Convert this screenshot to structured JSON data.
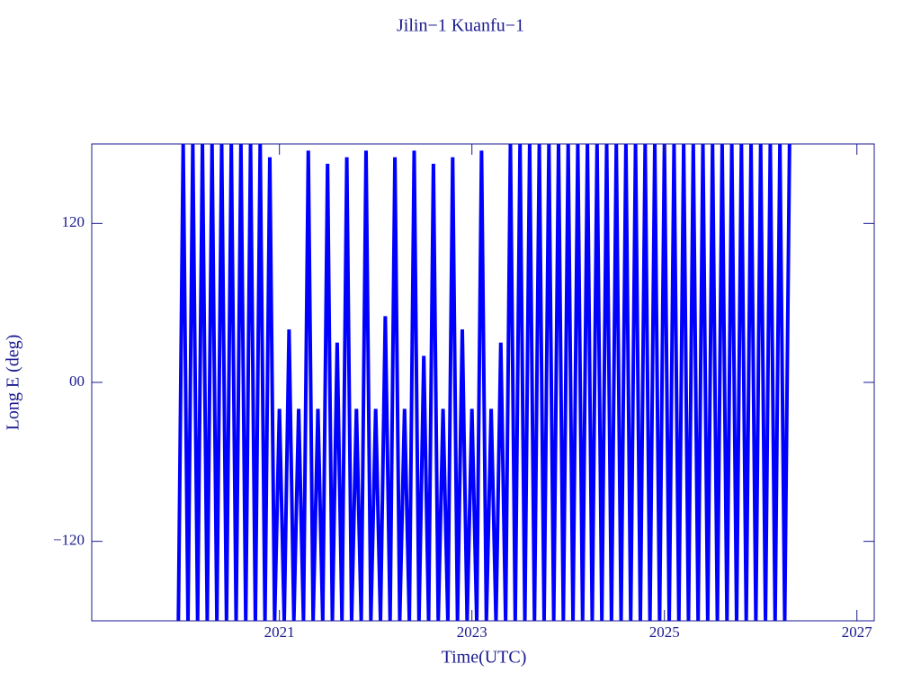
{
  "chart_data": {
    "type": "line",
    "title": "Jilin−1 Kuanfu−1",
    "x_label": "Time(UTC)",
    "y_label": "Long E (deg)",
    "color": "#0000ff",
    "xlim": [
      2019.05,
      2027.18
    ],
    "xticks": [
      2021,
      2023,
      2025,
      2027
    ],
    "ylim": [
      -180,
      180
    ],
    "yticks": [
      {
        "value": -120,
        "label": "−120"
      },
      {
        "value": 0,
        "label": "00"
      },
      120
    ],
    "x": [
      2019.95,
      2020,
      2020.05,
      2020.1,
      2020.15,
      2020.2,
      2020.25,
      2020.3,
      2020.35,
      2020.4,
      2020.45,
      2020.5,
      2020.55,
      2020.6,
      2020.65,
      2020.7,
      2020.75,
      2020.8,
      2020.85,
      2020.9,
      2020.95,
      2021,
      2021.05,
      2021.1,
      2021.15,
      2021.2,
      2021.25,
      2021.3,
      2021.35,
      2021.4,
      2021.45,
      2021.5,
      2021.55,
      2021.6,
      2021.65,
      2021.7,
      2021.75,
      2021.8,
      2021.85,
      2021.9,
      2021.95,
      2022,
      2022.05,
      2022.1,
      2022.15,
      2022.2,
      2022.25,
      2022.3,
      2022.35,
      2022.4,
      2022.45,
      2022.5,
      2022.55,
      2022.6,
      2022.65,
      2022.7,
      2022.75,
      2022.8,
      2022.85,
      2022.9,
      2022.95,
      2023,
      2023.05,
      2023.1,
      2023.15,
      2023.2,
      2023.25,
      2023.3,
      2023.35,
      2023.4,
      2023.45,
      2023.5,
      2023.55,
      2023.6,
      2023.65,
      2023.7,
      2023.75,
      2023.8,
      2023.85,
      2023.9,
      2023.95,
      2024,
      2024.05,
      2024.1,
      2024.15,
      2024.2,
      2024.25,
      2024.3,
      2024.35,
      2024.4,
      2024.45,
      2024.5,
      2024.55,
      2024.6,
      2024.65,
      2024.7,
      2024.75,
      2024.8,
      2024.85,
      2024.9,
      2024.95,
      2025,
      2025.05,
      2025.1,
      2025.15,
      2025.2,
      2025.25,
      2025.3,
      2025.35,
      2025.4,
      2025.45,
      2025.5,
      2025.55,
      2025.6,
      2025.65,
      2025.7,
      2025.75,
      2025.8,
      2025.85,
      2025.9,
      2025.95,
      2026,
      2026.05,
      2026.1,
      2026.15,
      2026.2,
      2026.25,
      2026.3
    ],
    "values": [
      -180,
      180,
      -180,
      180,
      -180,
      180,
      -180,
      180,
      -180,
      180,
      -180,
      180,
      -180,
      180,
      -180,
      180,
      -180,
      180,
      -180,
      170,
      -180,
      -20,
      -180,
      40,
      -180,
      -20,
      -180,
      175,
      -180,
      -20,
      -180,
      165,
      -180,
      30,
      -180,
      170,
      -180,
      -20,
      -180,
      175,
      -180,
      -20,
      -180,
      50,
      -180,
      170,
      -180,
      -20,
      -180,
      175,
      -180,
      20,
      -180,
      165,
      -180,
      -20,
      -180,
      170,
      -180,
      40,
      -180,
      -20,
      -180,
      175,
      -180,
      -20,
      -180,
      30,
      -180,
      180,
      -180,
      180,
      -180,
      180,
      -180,
      180,
      -180,
      180,
      -180,
      180,
      -180,
      180,
      -180,
      180,
      -180,
      180,
      -180,
      180,
      -180,
      180,
      -180,
      180,
      -180,
      180,
      -180,
      180,
      -180,
      180,
      -180,
      180,
      -180,
      180,
      -180,
      180,
      -180,
      180,
      -180,
      180,
      -180,
      180,
      -180,
      180,
      -180,
      180,
      -180,
      180,
      -180,
      180,
      -180,
      180,
      -180,
      180,
      -180,
      180,
      -180,
      180,
      -180,
      180
    ]
  }
}
